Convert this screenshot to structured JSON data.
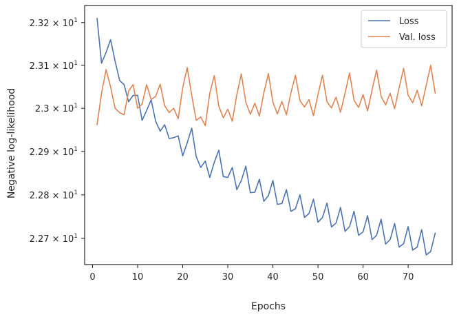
{
  "chart_data": {
    "type": "line",
    "title": "",
    "xlabel": "Epochs",
    "ylabel": "Negative log-likelihood",
    "xlim": [
      -1.75,
      79.75
    ],
    "ylim": [
      22.64,
      23.24
    ],
    "x_ticks": [
      0,
      10,
      20,
      30,
      40,
      50,
      60,
      70
    ],
    "y_ticks": [
      {
        "value": 22.7,
        "mantissa": "2.27",
        "exp": "1"
      },
      {
        "value": 22.8,
        "mantissa": "2.28",
        "exp": "1"
      },
      {
        "value": 22.9,
        "mantissa": "2.29",
        "exp": "1"
      },
      {
        "value": 23.0,
        "mantissa": "2.3",
        "exp": "1"
      },
      {
        "value": 23.1,
        "mantissa": "2.31",
        "exp": "1"
      },
      {
        "value": 23.2,
        "mantissa": "2.32",
        "exp": "1"
      }
    ],
    "y_scale": "log",
    "grid": false,
    "legend_position": "top-right",
    "x": [
      1,
      2,
      3,
      4,
      5,
      6,
      7,
      8,
      9,
      10,
      11,
      12,
      13,
      14,
      15,
      16,
      17,
      18,
      19,
      20,
      21,
      22,
      23,
      24,
      25,
      26,
      27,
      28,
      29,
      30,
      31,
      32,
      33,
      34,
      35,
      36,
      37,
      38,
      39,
      40,
      41,
      42,
      43,
      44,
      45,
      46,
      47,
      48,
      49,
      50,
      51,
      52,
      53,
      54,
      55,
      56,
      57,
      58,
      59,
      60,
      61,
      62,
      63,
      64,
      65,
      66,
      67,
      68,
      69,
      70,
      71,
      72,
      73,
      74,
      75,
      76
    ],
    "series": [
      {
        "name": "Loss",
        "color": "#4c72b0",
        "values": [
          23.21,
          23.105,
          23.13,
          23.16,
          23.11,
          23.065,
          23.055,
          23.015,
          23.03,
          23.03,
          22.972,
          22.995,
          23.02,
          22.97,
          22.947,
          22.962,
          22.93,
          22.932,
          22.936,
          22.89,
          22.92,
          22.954,
          22.888,
          22.863,
          22.878,
          22.84,
          22.875,
          22.903,
          22.842,
          22.84,
          22.863,
          22.812,
          22.833,
          22.866,
          22.805,
          22.806,
          22.836,
          22.785,
          22.798,
          22.833,
          22.778,
          22.78,
          22.812,
          22.762,
          22.768,
          22.8,
          22.748,
          22.757,
          22.79,
          22.737,
          22.748,
          22.781,
          22.726,
          22.735,
          22.771,
          22.716,
          22.727,
          22.762,
          22.707,
          22.715,
          22.752,
          22.697,
          22.707,
          22.744,
          22.687,
          22.697,
          22.734,
          22.68,
          22.688,
          22.727,
          22.673,
          22.68,
          22.72,
          22.662,
          22.67,
          22.712
        ]
      },
      {
        "name": "Val. loss",
        "color": "#dd8452",
        "values": [
          22.962,
          23.035,
          23.09,
          23.05,
          23.0,
          22.99,
          22.985,
          23.04,
          23.055,
          23.0,
          23.01,
          23.055,
          23.02,
          23.028,
          23.056,
          23.006,
          22.99,
          23.0,
          22.976,
          23.048,
          23.095,
          23.03,
          22.972,
          22.98,
          22.96,
          23.035,
          23.076,
          23.005,
          22.978,
          22.998,
          22.97,
          23.032,
          23.08,
          23.014,
          22.986,
          23.012,
          22.982,
          23.036,
          23.081,
          23.014,
          22.987,
          23.016,
          22.985,
          23.036,
          23.077,
          23.018,
          23.003,
          23.02,
          22.983,
          23.032,
          23.077,
          23.015,
          23.001,
          23.026,
          22.991,
          23.035,
          23.082,
          23.019,
          23.002,
          23.032,
          22.994,
          23.043,
          23.089,
          23.028,
          23.008,
          23.035,
          22.999,
          23.048,
          23.093,
          23.03,
          23.013,
          23.042,
          23.006,
          23.053,
          23.1,
          23.035
        ]
      }
    ]
  }
}
